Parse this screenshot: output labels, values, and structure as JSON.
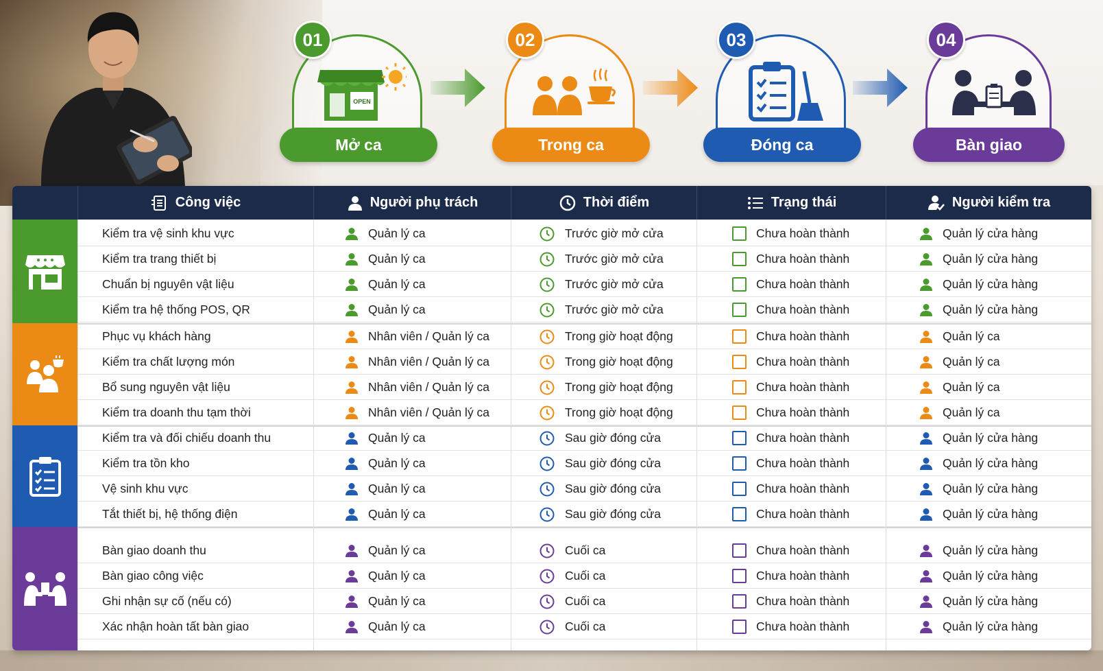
{
  "colors": {
    "green": "#4a9a2e",
    "orange": "#ec8a16",
    "blue": "#1f5bb0",
    "purple": "#6a3b98",
    "header": "#1c2b4a"
  },
  "steps": [
    {
      "number": "01",
      "label": "Mở ca",
      "icon": "store-open-sun-icon",
      "sign": "OPEN"
    },
    {
      "number": "02",
      "label": "Trong ca",
      "icon": "staff-coffee-icon"
    },
    {
      "number": "03",
      "label": "Đóng ca",
      "icon": "clipboard-broom-icon"
    },
    {
      "number": "04",
      "label": "Bàn giao",
      "icon": "handover-icon"
    }
  ],
  "headers": [
    {
      "label": "Công việc",
      "icon": "task-list-icon"
    },
    {
      "label": "Người phụ trách",
      "icon": "person-icon"
    },
    {
      "label": "Thời điểm",
      "icon": "clock-icon"
    },
    {
      "label": "Trạng thái",
      "icon": "checklist-icon"
    },
    {
      "label": "Người kiểm tra",
      "icon": "person-check-icon"
    }
  ],
  "groups": [
    {
      "icon": "store-icon",
      "rows": [
        [
          "Kiểm tra vệ sinh khu vực",
          "Quản lý ca",
          "Trước giờ mở cửa",
          "Chưa hoàn thành",
          "Quản lý cửa hàng"
        ],
        [
          "Kiểm tra trang thiết bị",
          "Quản lý ca",
          "Trước giờ mở cửa",
          "Chưa hoàn thành",
          "Quản lý cửa hàng"
        ],
        [
          "Chuẩn bị nguyên vật liệu",
          "Quản lý ca",
          "Trước giờ mở cửa",
          "Chưa hoàn thành",
          "Quản lý cửa hàng"
        ],
        [
          "Kiểm tra hệ thống POS, QR",
          "Quản lý ca",
          "Trước giờ mở cửa",
          "Chưa hoàn thành",
          "Quản lý cửa hàng"
        ]
      ]
    },
    {
      "icon": "staff-icon",
      "rows": [
        [
          "Phục vụ khách hàng",
          "Nhân viên / Quản lý ca",
          "Trong giờ hoạt động",
          "Chưa hoàn thành",
          "Quản lý ca"
        ],
        [
          "Kiểm tra chất lượng món",
          "Nhân viên / Quản lý ca",
          "Trong giờ hoạt động",
          "Chưa hoàn thành",
          "Quản lý ca"
        ],
        [
          "Bổ sung nguyên vật liệu",
          "Nhân viên / Quản lý ca",
          "Trong giờ hoạt động",
          "Chưa hoàn thành",
          "Quản lý ca"
        ],
        [
          "Kiểm tra doanh thu tạm thời",
          "Nhân viên / Quản lý ca",
          "Trong giờ hoạt động",
          "Chưa hoàn thành",
          "Quản lý ca"
        ]
      ]
    },
    {
      "icon": "clipboard-icon",
      "rows": [
        [
          "Kiểm tra và đối chiếu doanh thu",
          "Quản lý ca",
          "Sau giờ đóng cửa",
          "Chưa hoàn thành",
          "Quản lý cửa hàng"
        ],
        [
          "Kiểm tra tồn kho",
          "Quản lý ca",
          "Sau giờ đóng cửa",
          "Chưa hoàn thành",
          "Quản lý cửa hàng"
        ],
        [
          "Vệ sinh khu vực",
          "Quản lý ca",
          "Sau giờ đóng cửa",
          "Chưa hoàn thành",
          "Quản lý cửa hàng"
        ],
        [
          "Tắt thiết bị, hệ thống điện",
          "Quản lý ca",
          "Sau giờ đóng cửa",
          "Chưa hoàn thành",
          "Quản lý cửa hàng"
        ]
      ]
    },
    {
      "icon": "handover-icon",
      "rows": [
        [
          "Bàn giao doanh thu",
          "Quản lý ca",
          "Cuối ca",
          "Chưa hoàn thành",
          "Quản lý cửa hàng"
        ],
        [
          "Bàn giao công việc",
          "Quản lý ca",
          "Cuối ca",
          "Chưa hoàn thành",
          "Quản lý cửa hàng"
        ],
        [
          "Ghi nhận sự cố (nếu có)",
          "Quản lý ca",
          "Cuối ca",
          "Chưa hoàn thành",
          "Quản lý cửa hàng"
        ],
        [
          "Xác nhận hoàn tất bàn giao",
          "Quản lý ca",
          "Cuối ca",
          "Chưa hoàn thành",
          "Quản lý cửa hàng"
        ]
      ]
    }
  ]
}
